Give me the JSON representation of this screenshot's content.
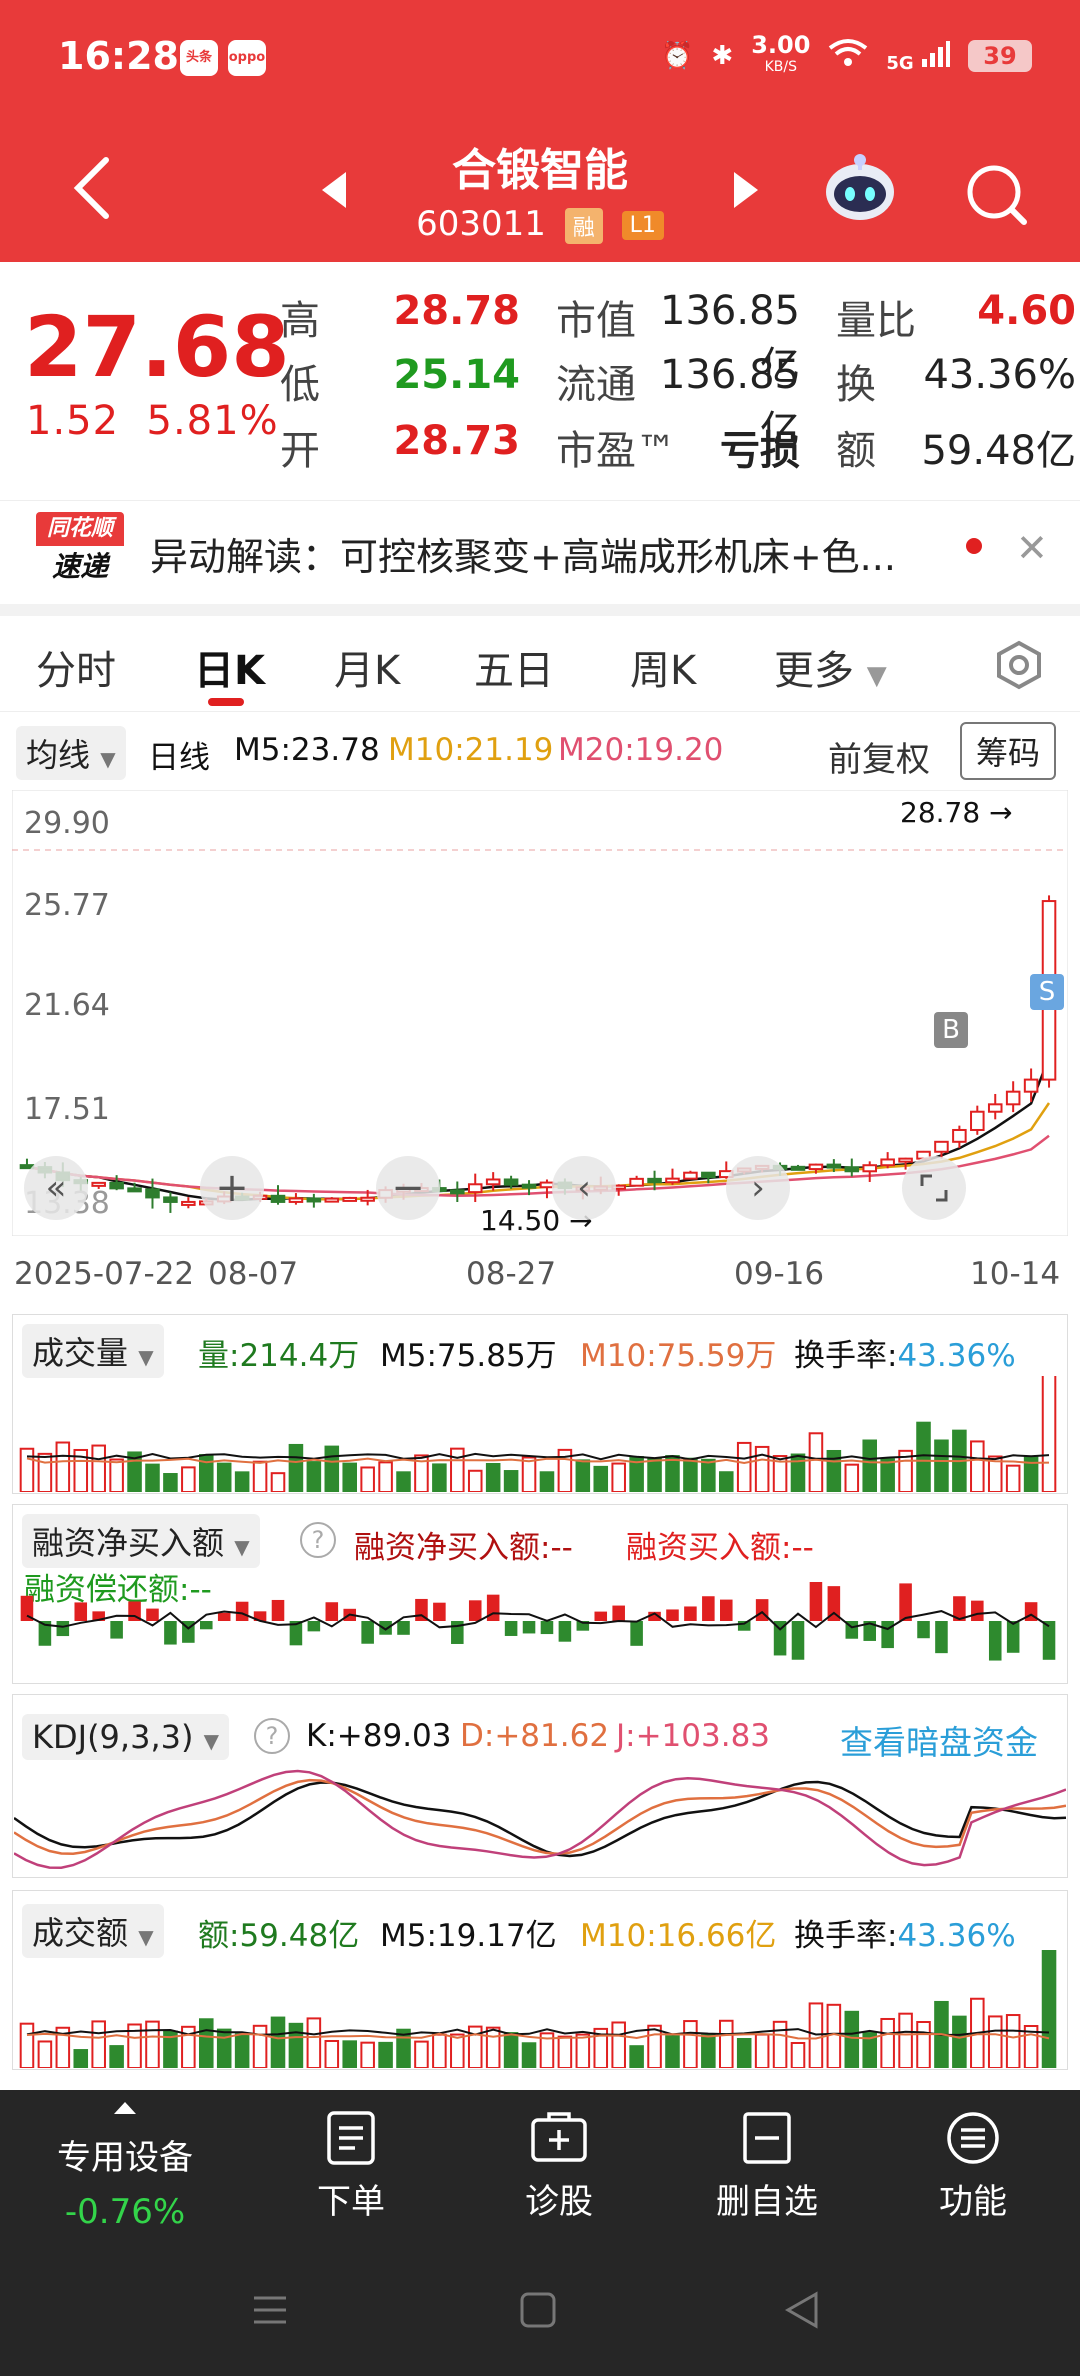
{
  "status_bar": {
    "time": "16:28",
    "app_badges": [
      "头条",
      "oppo"
    ],
    "net_speed": "3.00",
    "net_speed_unit": "KB/S",
    "battery": "39",
    "signal": "5G"
  },
  "header": {
    "title": "合锻智能",
    "code": "603011",
    "tags": [
      "融",
      "L1"
    ]
  },
  "quote": {
    "price": "27.68",
    "change": "1.52",
    "change_pct": "5.81%",
    "high_label": "高",
    "high": "28.78",
    "low_label": "低",
    "low": "25.14",
    "open_label": "开",
    "open": "28.73",
    "mktcap_label": "市值",
    "mktcap": "136.85亿",
    "float_label": "流通",
    "float": "136.85亿",
    "pe_label": "市盈™",
    "pe": "亏损",
    "vol_ratio_label": "量比",
    "vol_ratio": "4.60",
    "turnover_label": "换",
    "turnover": "43.36%",
    "amount_label": "额",
    "amount": "59.48亿"
  },
  "news": {
    "logo_top": "同花顺",
    "logo_bottom": "速递",
    "text": "异动解读：可控核聚变+高端成形机床+色..."
  },
  "tabs": [
    "分时",
    "日K",
    "月K",
    "五日",
    "周K",
    "更多"
  ],
  "active_tab": 1,
  "kline_header": {
    "selector": "均线",
    "period": "日线",
    "m5": "M5:23.78",
    "m10": "M10:21.19",
    "m20": "M20:19.20",
    "adjust": "前复权",
    "chips": "筹码"
  },
  "kline": {
    "y_ticks": [
      "29.90",
      "25.77",
      "21.64",
      "17.51",
      "13.38"
    ],
    "x_ticks": [
      "2025-07-22",
      "08-07",
      "08-27",
      "09-16",
      "10-14"
    ],
    "max_label": "28.78",
    "min_label": "14.50",
    "marker_b": "B",
    "marker_s": "S"
  },
  "volume_panel": {
    "selector": "成交量",
    "vol": "量:214.4万",
    "m5": "M5:75.85万",
    "m10": "M10:75.59万",
    "turnover_label": "换手率:",
    "turnover": "43.36%"
  },
  "margin_panel": {
    "selector": "融资净买入额",
    "net": "融资净买入额:--",
    "buy": "融资买入额:--",
    "repay": "融资偿还额:--"
  },
  "kdj_panel": {
    "selector": "KDJ(9,3,3)",
    "k": "K:+89.03",
    "d": "D:+81.62",
    "j": "J:+103.83",
    "link": "查看暗盘资金"
  },
  "amount_panel": {
    "selector": "成交额",
    "amt": "额:59.48亿",
    "m5": "M5:19.17亿",
    "m10": "M10:16.66亿",
    "turnover_label": "换手率:",
    "turnover": "43.36%"
  },
  "bottom_nav": {
    "device_label": "专用设备",
    "device_change": "-0.76%",
    "items": [
      "下单",
      "诊股",
      "删自选",
      "功能"
    ]
  },
  "colors": {
    "brand_red": "#e83a3a",
    "up": "#e02020",
    "down": "#1f9a1f",
    "link": "#2a9ed8"
  }
}
